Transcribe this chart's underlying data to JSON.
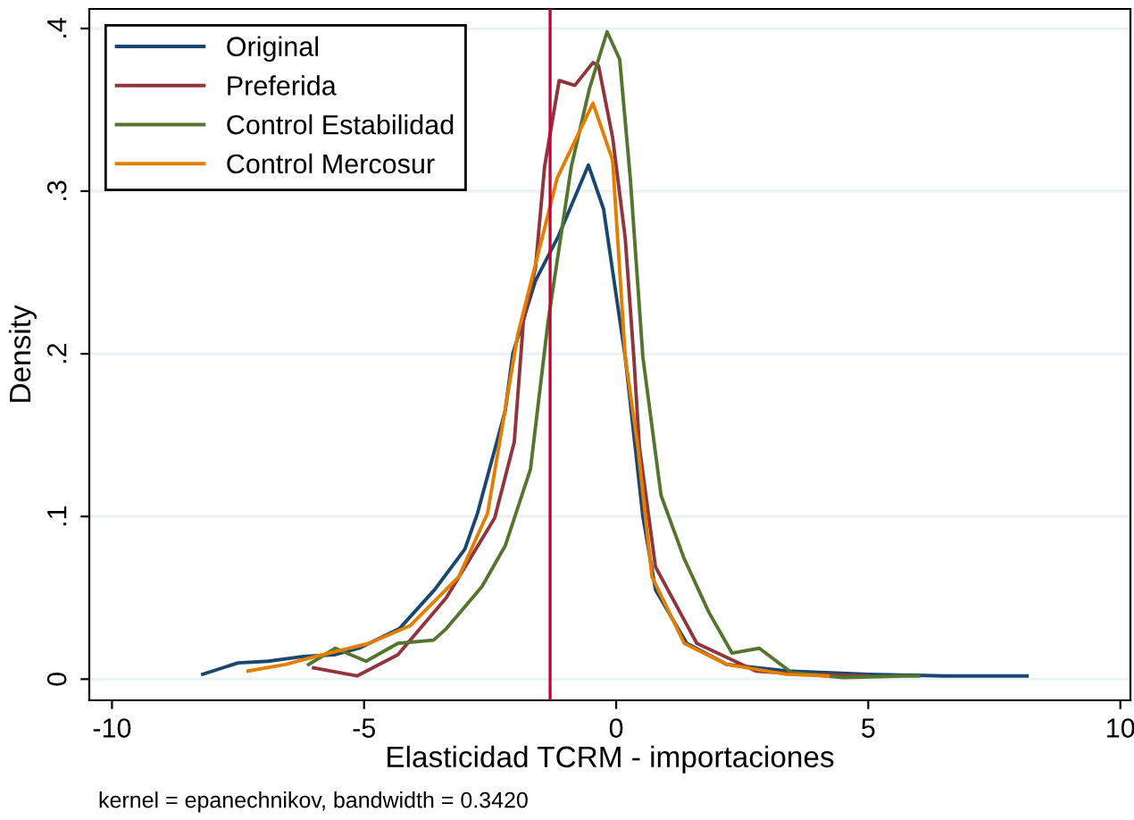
{
  "chart_data": {
    "type": "line",
    "xlabel": "Elasticidad TCRM - importaciones",
    "ylabel": "Density",
    "annotations": [
      "kernel = epanechnikov, bandwidth = 0.3420"
    ],
    "xlim": [
      -10.45,
      10.2
    ],
    "ylim": [
      -0.013,
      0.412
    ],
    "xticks": [
      -10,
      -5,
      0,
      5,
      10
    ],
    "yticks": [
      0,
      {
        "value": 0.1,
        "label": ".1"
      },
      {
        "value": 0.2,
        "label": ".2"
      },
      {
        "value": 0.3,
        "label": ".3"
      },
      {
        "value": 0.4,
        "label": ".4"
      }
    ],
    "grid": "y",
    "legend": "top left",
    "line_style": "solid",
    "marker": "none",
    "ref_lines": [
      {
        "axis": "x",
        "value": -1.31,
        "label": null,
        "color": "#c10534"
      }
    ],
    "series": [
      {
        "name": "Original",
        "color": "#1a476f",
        "x": [
          -8.2,
          -7.5,
          -6.9,
          -6.2,
          -5.6,
          -5.1,
          -4.3,
          -3.6,
          -3.0,
          -2.75,
          -2.2,
          -2.05,
          -1.6,
          -1.15,
          -0.55,
          -0.25,
          0.18,
          0.53,
          0.78,
          1.4,
          2.2,
          3.4,
          5.0,
          6.5,
          8.15
        ],
        "values": [
          0.003,
          0.01,
          0.011,
          0.014,
          0.015,
          0.019,
          0.031,
          0.055,
          0.08,
          0.102,
          0.165,
          0.2,
          0.245,
          0.272,
          0.316,
          0.289,
          0.198,
          0.1,
          0.055,
          0.022,
          0.009,
          0.005,
          0.003,
          0.002,
          0.002
        ]
      },
      {
        "name": "Preferida",
        "color": "#90353b",
        "x": [
          -6.0,
          -5.14,
          -4.33,
          -3.37,
          -2.41,
          -2.02,
          -1.84,
          -1.6,
          -1.42,
          -1.13,
          -0.82,
          -0.46,
          -0.35,
          -0.07,
          0.18,
          0.35,
          0.46,
          0.78,
          1.6,
          2.77,
          3.7,
          5.0
        ],
        "values": [
          0.007,
          0.002,
          0.015,
          0.05,
          0.099,
          0.146,
          0.22,
          0.253,
          0.315,
          0.368,
          0.365,
          0.379,
          0.377,
          0.333,
          0.271,
          0.198,
          0.143,
          0.069,
          0.022,
          0.005,
          0.003,
          0.002
        ]
      },
      {
        "name": "Control Estabilidad",
        "color": "#55752f",
        "x": [
          -6.1,
          -5.57,
          -4.96,
          -4.33,
          -3.62,
          -3.37,
          -2.66,
          -2.2,
          -1.7,
          -1.35,
          -0.89,
          -0.53,
          -0.18,
          0.07,
          0.28,
          0.53,
          0.89,
          1.35,
          1.84,
          2.3,
          2.84,
          3.48,
          4.5,
          5.75,
          6.0
        ],
        "values": [
          0.009,
          0.019,
          0.011,
          0.022,
          0.024,
          0.031,
          0.057,
          0.082,
          0.129,
          0.22,
          0.315,
          0.363,
          0.398,
          0.381,
          0.308,
          0.198,
          0.113,
          0.074,
          0.041,
          0.016,
          0.019,
          0.004,
          0.001,
          0.002,
          0.002
        ]
      },
      {
        "name": "Control Mercosur",
        "color": "#e37e00",
        "x": [
          -7.3,
          -6.56,
          -5.96,
          -4.9,
          -4.08,
          -3.12,
          -2.55,
          -1.95,
          -1.17,
          -0.46,
          -0.07,
          0.18,
          0.43,
          0.71,
          1.35,
          2.2,
          3.37,
          4.2
        ],
        "values": [
          0.005,
          0.009,
          0.014,
          0.022,
          0.033,
          0.063,
          0.102,
          0.212,
          0.308,
          0.354,
          0.319,
          0.198,
          0.143,
          0.063,
          0.022,
          0.009,
          0.003,
          0.002
        ]
      }
    ]
  }
}
